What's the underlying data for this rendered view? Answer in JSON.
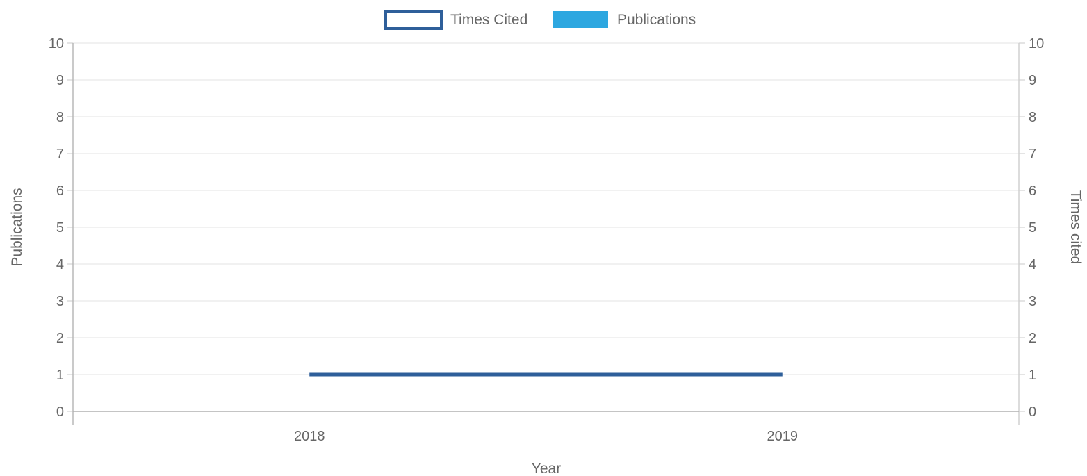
{
  "chart_data": {
    "type": "bar",
    "categories": [
      "2018",
      "2019"
    ],
    "series": [
      {
        "name": "Times Cited",
        "kind": "line",
        "axis": "right",
        "values": [
          1,
          1
        ],
        "color": "#2e5f9a"
      },
      {
        "name": "Publications",
        "kind": "bar",
        "axis": "left",
        "values": [
          0,
          0
        ],
        "color": "#2da7e0"
      }
    ],
    "xlabel": "Year",
    "ylabel_left": "Publications",
    "ylabel_right": "Times cited",
    "ylim_left": [
      0,
      10
    ],
    "ylim_right": [
      0,
      10
    ],
    "y_ticks": [
      "0",
      "1",
      "2",
      "3",
      "4",
      "5",
      "6",
      "7",
      "8",
      "9",
      "10"
    ],
    "grid": true,
    "legend_position": "top"
  }
}
